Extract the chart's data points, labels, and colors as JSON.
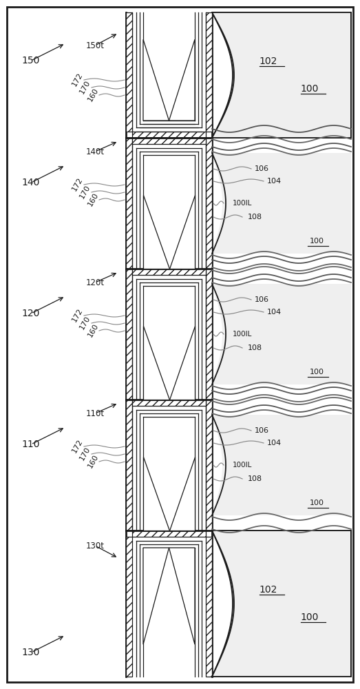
{
  "fig_w": 5.23,
  "fig_h": 10.0,
  "dpi": 100,
  "lc": "#1a1a1a",
  "lc_gray": "#aaaaaa",
  "bg": "white",
  "gx_l": 183,
  "gx_r": 308,
  "sx_r": 510,
  "sec_bounds": [
    18,
    200,
    390,
    580,
    770,
    982
  ],
  "hatch_t": 9,
  "layer_t": [
    6,
    5,
    5
  ],
  "sections_top_to_bot": [
    "150",
    "140",
    "120",
    "110",
    "130"
  ],
  "section_t_labels": [
    "150t",
    "140t",
    "120t",
    "110t",
    "130t"
  ]
}
